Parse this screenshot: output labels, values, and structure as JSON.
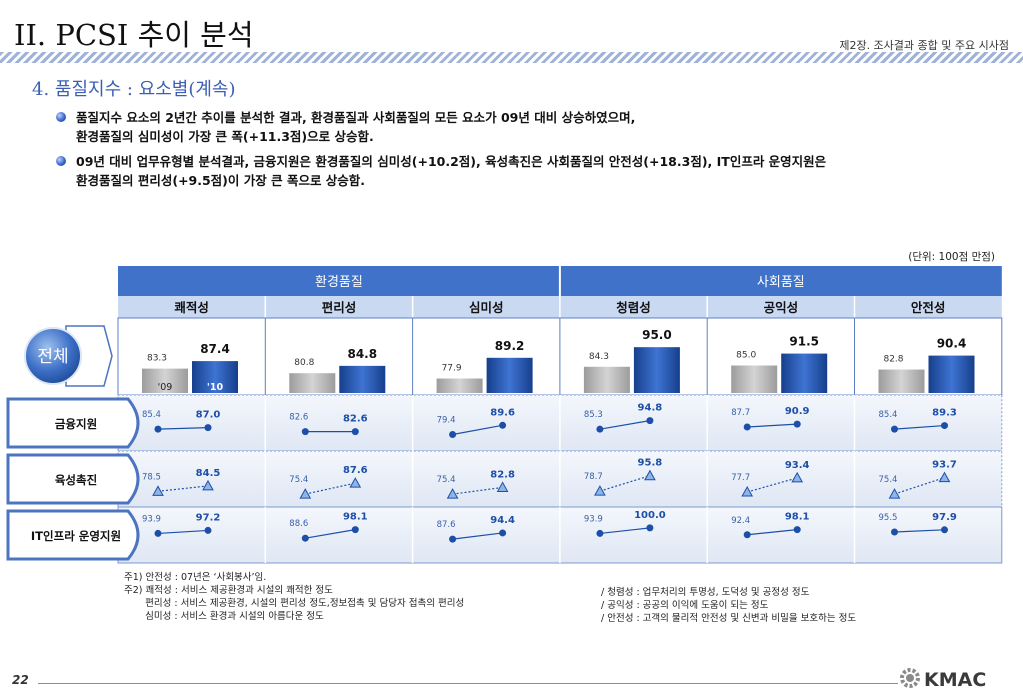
{
  "header": {
    "title": "II. PCSI 추이 분석",
    "chapter": "제2장. 조사결과 종합 및 주요 시사점"
  },
  "section_title": "4. 품질지수 : 요소별(계속)",
  "bullets": [
    [
      "품질지수 요소의 2년간 추이를 분석한 결과, 환경품질과 사회품질의 모든 요소가 09년 대비 상승하였으며,",
      "환경품질의 심미성이 가장 큰 폭(+11.3점)으로 상승함."
    ],
    [
      "09년 대비 업무유형별 분석결과, 금융지원은 환경품질의 심미성(+10.2점), 육성촉진은 사회품질의 안전성(+18.3점), IT인프라 운영지원은",
      "환경품질의 편리성(+9.5점)이 가장 큰 폭으로 상승함."
    ]
  ],
  "unit_note": "(단위: 100점 만점)",
  "colors": {
    "header_blue": "#3f72c8",
    "bar_09": "#b3b3b3",
    "bar_10": "#1d4fa8",
    "line_blue": "#1d4fa8",
    "triangle_fill": "#8fb4e8"
  },
  "chart_data": {
    "type": "table",
    "groups": [
      {
        "name": "환경품질",
        "span": 3
      },
      {
        "name": "사회품질",
        "span": 3
      }
    ],
    "columns": [
      "쾌적성",
      "편리성",
      "심미성",
      "청렴성",
      "공익성",
      "안전성"
    ],
    "years": [
      "'09",
      "'10"
    ],
    "total_label": "전체",
    "total": {
      "y09": [
        83.3,
        80.8,
        77.9,
        84.3,
        85.0,
        82.8
      ],
      "y10": [
        87.4,
        84.8,
        89.2,
        95.0,
        91.5,
        90.4
      ]
    },
    "rows": [
      {
        "name": "금융지원",
        "marker": "circle",
        "line": "solid",
        "y09": [
          85.4,
          82.6,
          79.4,
          85.3,
          87.7,
          85.4
        ],
        "y10": [
          87.0,
          82.6,
          89.6,
          94.8,
          90.9,
          89.3
        ]
      },
      {
        "name": "육성촉진",
        "marker": "triangle",
        "line": "dotted",
        "y09": [
          78.5,
          75.4,
          75.4,
          78.7,
          77.7,
          75.4
        ],
        "y10": [
          84.5,
          87.6,
          82.8,
          95.8,
          93.4,
          93.7
        ]
      },
      {
        "name": "IT인프라 운영지원",
        "marker": "circle",
        "line": "solid",
        "y09": [
          93.9,
          88.6,
          87.6,
          93.9,
          92.4,
          95.5
        ],
        "y10": [
          97.2,
          98.1,
          94.4,
          100.0,
          98.1,
          97.9
        ]
      }
    ]
  },
  "notes_left": [
    "주1) 안전성 : 07년은 ‘사회봉사’임.",
    "주2) 쾌적성 : 서비스 제공환경과 시설의 쾌적한 정도",
    "       편리성 : 서비스 제공환경, 시설의 편리성 정도,정보접촉 및 담당자 접촉의 편리성",
    "       심미성 : 서비스 환경과 시설의 아름다운 정도"
  ],
  "notes_right": [
    "/ 청렴성 : 업무처리의 투명성, 도덕성 및 공정성 정도",
    "/ 공익성 : 공공의 이익에 도움이 되는 정도",
    "/ 안전성 : 고객의 물리적 안전성 및 신변과 비밀을 보호하는 정도"
  ],
  "footer": {
    "page": "22",
    "logo": "KMAC"
  }
}
